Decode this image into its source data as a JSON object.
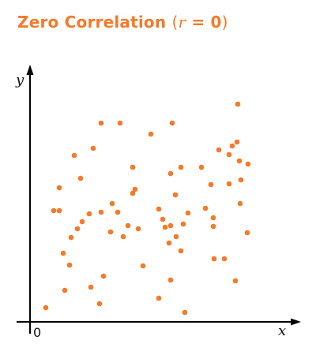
{
  "chart_data": {
    "type": "scatter",
    "title": {
      "main": "Zero Correlation",
      "paren_open": "(",
      "r_symbol": "r",
      "equals": " = 0",
      "paren_close": ")"
    },
    "xlabel": "x",
    "ylabel": "y",
    "origin_label": "0",
    "marker_color": "#f47a2a",
    "title_color": "#f47a2a",
    "axis_color": "#000000",
    "grid": false,
    "legend": "none",
    "xlim": [
      0,
      340
    ],
    "ylim": [
      0,
      270
    ],
    "points": [
      {
        "x": 20,
        "y": 18
      },
      {
        "x": 44,
        "y": 40
      },
      {
        "x": 50,
        "y": 72
      },
      {
        "x": 88,
        "y": 23
      },
      {
        "x": 93,
        "y": 58
      },
      {
        "x": 77,
        "y": 44
      },
      {
        "x": 42,
        "y": 87
      },
      {
        "x": 52,
        "y": 107
      },
      {
        "x": 66,
        "y": 127
      },
      {
        "x": 60,
        "y": 118
      },
      {
        "x": 75,
        "y": 137
      },
      {
        "x": 90,
        "y": 139
      },
      {
        "x": 104,
        "y": 150
      },
      {
        "x": 102,
        "y": 114
      },
      {
        "x": 124,
        "y": 122
      },
      {
        "x": 118,
        "y": 108
      },
      {
        "x": 111,
        "y": 139
      },
      {
        "x": 137,
        "y": 118
      },
      {
        "x": 130,
        "y": 163
      },
      {
        "x": 143,
        "y": 71
      },
      {
        "x": 133,
        "y": 168
      },
      {
        "x": 130,
        "y": 196
      },
      {
        "x": 114,
        "y": 252
      },
      {
        "x": 90,
        "y": 252
      },
      {
        "x": 56,
        "y": 211
      },
      {
        "x": 80,
        "y": 220
      },
      {
        "x": 64,
        "y": 182
      },
      {
        "x": 37,
        "y": 170
      },
      {
        "x": 30,
        "y": 141
      },
      {
        "x": 37,
        "y": 141
      },
      {
        "x": 153,
        "y": 238
      },
      {
        "x": 180,
        "y": 252
      },
      {
        "x": 168,
        "y": 130
      },
      {
        "x": 163,
        "y": 143
      },
      {
        "x": 171,
        "y": 120
      },
      {
        "x": 176,
        "y": 100
      },
      {
        "x": 185,
        "y": 108
      },
      {
        "x": 178,
        "y": 188
      },
      {
        "x": 191,
        "y": 196
      },
      {
        "x": 184,
        "y": 161
      },
      {
        "x": 178,
        "y": 122
      },
      {
        "x": 194,
        "y": 124
      },
      {
        "x": 200,
        "y": 138
      },
      {
        "x": 191,
        "y": 90
      },
      {
        "x": 163,
        "y": 30
      },
      {
        "x": 178,
        "y": 53
      },
      {
        "x": 196,
        "y": 12
      },
      {
        "x": 217,
        "y": 196
      },
      {
        "x": 222,
        "y": 144
      },
      {
        "x": 229,
        "y": 174
      },
      {
        "x": 239,
        "y": 218
      },
      {
        "x": 232,
        "y": 132
      },
      {
        "x": 233,
        "y": 80
      },
      {
        "x": 246,
        "y": 80
      },
      {
        "x": 232,
        "y": 121
      },
      {
        "x": 252,
        "y": 212
      },
      {
        "x": 252,
        "y": 175
      },
      {
        "x": 260,
        "y": 52
      },
      {
        "x": 256,
        "y": 223
      },
      {
        "x": 266,
        "y": 150
      },
      {
        "x": 262,
        "y": 228
      },
      {
        "x": 265,
        "y": 204
      },
      {
        "x": 267,
        "y": 180
      },
      {
        "x": 276,
        "y": 200
      },
      {
        "x": 275,
        "y": 113
      },
      {
        "x": 263,
        "y": 276
      }
    ]
  }
}
